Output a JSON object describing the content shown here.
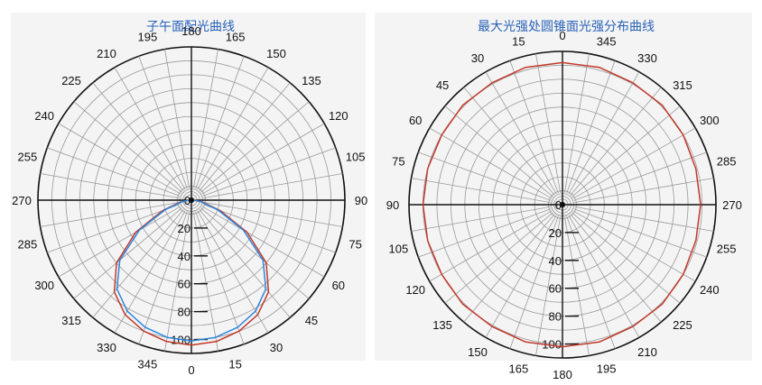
{
  "chart_data": [
    {
      "type": "polar",
      "title": "子午面配光曲线",
      "angle_labels": [
        "180",
        "165",
        "150",
        "135",
        "120",
        "105",
        "90",
        "75",
        "60",
        "45",
        "30",
        "15",
        "0",
        "345",
        "330",
        "315",
        "300",
        "285",
        "270",
        "255",
        "240",
        "225",
        "210",
        "195"
      ],
      "radial_labels": [
        "0",
        "20",
        "40",
        "60",
        "80",
        "100"
      ],
      "r_max": 110,
      "grid": true,
      "series": [
        {
          "color": "#c0392b",
          "angles": [
            0,
            10,
            20,
            30,
            40,
            50,
            60,
            70,
            80,
            90,
            270,
            280,
            290,
            300,
            310,
            320,
            330,
            340,
            350
          ],
          "values": [
            104,
            103,
            100,
            95,
            86,
            70,
            46,
            22,
            8,
            2,
            2,
            8,
            22,
            46,
            70,
            86,
            95,
            100,
            103
          ]
        },
        {
          "color": "#2e86de",
          "angles": [
            0,
            10,
            20,
            30,
            40,
            50,
            60,
            70,
            80,
            90,
            270,
            280,
            290,
            300,
            310,
            320,
            330,
            340,
            350
          ],
          "values": [
            101,
            100,
            97,
            92,
            83,
            67,
            43,
            20,
            7,
            2,
            2,
            7,
            20,
            43,
            67,
            83,
            92,
            97,
            100
          ]
        }
      ]
    },
    {
      "type": "polar",
      "title": "最大光强处圆锥面光强分布曲线",
      "angle_labels": [
        "0",
        "345",
        "330",
        "315",
        "300",
        "285",
        "270",
        "255",
        "240",
        "225",
        "210",
        "195",
        "180",
        "165",
        "150",
        "135",
        "120",
        "105",
        "90",
        "75",
        "60",
        "45",
        "30",
        "15"
      ],
      "radial_labels": [
        "0",
        "20",
        "40",
        "60",
        "80",
        "100"
      ],
      "r_max": 110,
      "grid": true,
      "series": [
        {
          "color": "#c0392b",
          "angles": [
            0,
            15,
            30,
            45,
            60,
            75,
            90,
            105,
            120,
            135,
            150,
            165,
            180,
            195,
            210,
            225,
            240,
            255,
            270,
            285,
            300,
            315,
            330,
            345
          ],
          "values": [
            102,
            102,
            101,
            101,
            100,
            100,
            100,
            100,
            100,
            101,
            101,
            102,
            102,
            102,
            101,
            101,
            100,
            99,
            99,
            99,
            100,
            101,
            101,
            102
          ]
        }
      ]
    }
  ]
}
